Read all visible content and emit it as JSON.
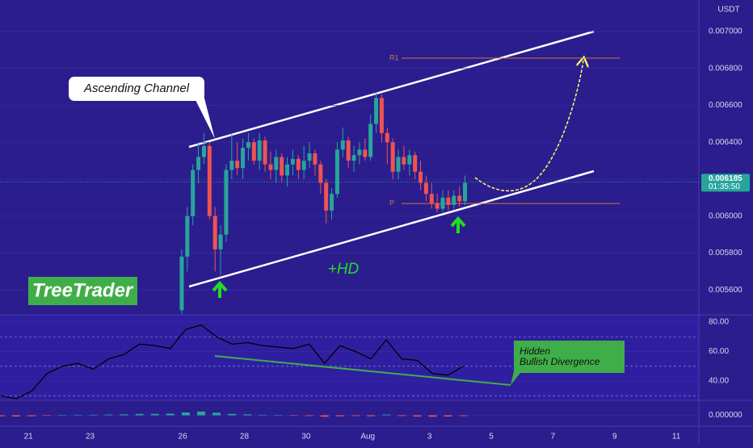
{
  "chart_data": [
    {
      "type": "candlestick",
      "unit": "USDT",
      "brand": "TreeTrader",
      "annotations": {
        "channel": "Ascending Channel",
        "hd": "+HD"
      },
      "levels": [
        {
          "name": "R1",
          "value": 0.006856
        },
        {
          "name": "P",
          "value": 0.006068
        }
      ],
      "last_price": {
        "value": 0.006185,
        "label": "0.006185"
      },
      "countdown": "01:35:50",
      "up_color": "#26a69a",
      "down_color": "#ef5350",
      "x": [
        25.97,
        26.15,
        26.33,
        26.51,
        26.69,
        26.87,
        27.05,
        27.23,
        27.41,
        27.59,
        27.77,
        27.95,
        28.13,
        28.31,
        28.49,
        28.67,
        28.85,
        29.03,
        29.21,
        29.39,
        29.57,
        29.75,
        29.93,
        30.11,
        30.29,
        30.47,
        30.65,
        30.83,
        31.01,
        31.19,
        31.37,
        31.55,
        31.73,
        31.91,
        32.09,
        32.27,
        32.45,
        32.63,
        32.81,
        32.99,
        33.17,
        33.35,
        33.53,
        33.71,
        33.89,
        34.07,
        34.25,
        34.43,
        34.61,
        34.79,
        34.97,
        35.15
      ],
      "open": [
        0.00549,
        0.00578,
        0.006,
        0.00625,
        0.00632,
        0.00638,
        0.006,
        0.00582,
        0.0059,
        0.00625,
        0.0063,
        0.00626,
        0.00637,
        0.0064,
        0.0063,
        0.00641,
        0.00628,
        0.00625,
        0.00632,
        0.00622,
        0.00628,
        0.00631,
        0.00625,
        0.0063,
        0.00634,
        0.00628,
        0.00618,
        0.00603,
        0.00612,
        0.00636,
        0.00641,
        0.0063,
        0.00633,
        0.00636,
        0.00632,
        0.0065,
        0.00664,
        0.00645,
        0.0064,
        0.00624,
        0.00632,
        0.00628,
        0.00633,
        0.00624,
        0.00618,
        0.00612,
        0.00607,
        0.00604,
        0.0061,
        0.00606,
        0.00611,
        0.00608
      ],
      "high": [
        0.00582,
        0.00605,
        0.00628,
        0.0064,
        0.00645,
        0.0064,
        0.00605,
        0.00595,
        0.00628,
        0.00645,
        0.0064,
        0.00642,
        0.00645,
        0.00642,
        0.00645,
        0.00643,
        0.00635,
        0.00636,
        0.00634,
        0.00632,
        0.00636,
        0.00633,
        0.00638,
        0.0064,
        0.00636,
        0.0063,
        0.0062,
        0.00615,
        0.0064,
        0.00648,
        0.00643,
        0.00638,
        0.0064,
        0.00642,
        0.00655,
        0.00667,
        0.00666,
        0.00648,
        0.00642,
        0.00636,
        0.00638,
        0.00636,
        0.00635,
        0.0063,
        0.00622,
        0.00618,
        0.00612,
        0.00614,
        0.00614,
        0.00614,
        0.00616,
        0.00622
      ],
      "low": [
        0.00547,
        0.0057,
        0.00595,
        0.00618,
        0.00628,
        0.00598,
        0.0057,
        0.00568,
        0.00586,
        0.0062,
        0.00622,
        0.0062,
        0.0063,
        0.00628,
        0.00625,
        0.00624,
        0.0062,
        0.00618,
        0.00618,
        0.00616,
        0.00622,
        0.0062,
        0.0062,
        0.00626,
        0.00622,
        0.00612,
        0.00596,
        0.00598,
        0.0061,
        0.00632,
        0.00626,
        0.00624,
        0.00628,
        0.0063,
        0.0063,
        0.00645,
        0.0064,
        0.00628,
        0.0062,
        0.0062,
        0.00625,
        0.00622,
        0.0062,
        0.00614,
        0.00608,
        0.00604,
        0.00602,
        0.00602,
        0.00603,
        0.00604,
        0.00605,
        0.00606
      ],
      "close": [
        0.00578,
        0.006,
        0.00625,
        0.00632,
        0.00638,
        0.006,
        0.00582,
        0.0059,
        0.00625,
        0.0063,
        0.00626,
        0.00637,
        0.0064,
        0.0063,
        0.00641,
        0.00628,
        0.00625,
        0.00632,
        0.00622,
        0.00628,
        0.00631,
        0.00625,
        0.0063,
        0.00634,
        0.00628,
        0.00618,
        0.00603,
        0.00612,
        0.00636,
        0.00641,
        0.0063,
        0.00633,
        0.00636,
        0.00632,
        0.0065,
        0.00664,
        0.00645,
        0.0064,
        0.00624,
        0.00632,
        0.00628,
        0.00633,
        0.00624,
        0.00618,
        0.00612,
        0.00607,
        0.00604,
        0.0061,
        0.00606,
        0.00611,
        0.00608,
        0.00618
      ],
      "xlim": [
        20.08,
        42.73
      ],
      "xticks": [
        21,
        23,
        26,
        28,
        30,
        {
          "value": 32,
          "label": "Aug"
        },
        {
          "value": 34,
          "label": "3"
        },
        {
          "value": 36,
          "label": "5"
        },
        {
          "value": 38,
          "label": "7"
        },
        {
          "value": 40,
          "label": "9"
        },
        {
          "value": 42,
          "label": "11"
        }
      ],
      "ylim": [
        0.005443,
        0.007171
      ],
      "yticks": [
        {
          "value": 0.0056,
          "label": "0.005600"
        },
        {
          "value": 0.0058,
          "label": "0.005800"
        },
        {
          "value": 0.006,
          "label": "0.006000"
        },
        {
          "value": 0.0062,
          "label": "0.006200"
        },
        {
          "value": 0.0064,
          "label": "0.006400"
        },
        {
          "value": 0.0066,
          "label": "0.006600"
        },
        {
          "value": 0.0068,
          "label": "0.006800"
        },
        {
          "value": 0.007,
          "label": "0.007000"
        }
      ]
    },
    {
      "type": "line",
      "color": "#000000",
      "annotation": [
        "Hidden",
        "Bullish Divergence"
      ],
      "x": [
        20.1,
        20.6,
        21.1,
        21.6,
        22.1,
        22.6,
        23.1,
        23.6,
        24.1,
        24.6,
        25.1,
        25.6,
        26.1,
        26.6,
        27.1,
        27.6,
        28.1,
        28.6,
        29.1,
        29.6,
        30.1,
        30.6,
        31.1,
        31.6,
        32.1,
        32.6,
        33.1,
        33.6,
        34.1,
        34.6,
        35.1
      ],
      "values": [
        30,
        28,
        33,
        45,
        50,
        52,
        48,
        55,
        58,
        65,
        64,
        62,
        75,
        78,
        70,
        65,
        66,
        64,
        63,
        62,
        65,
        52,
        64,
        60,
        55,
        68,
        55,
        54,
        45,
        44,
        50
      ],
      "bands": [
        70,
        50,
        30
      ],
      "ylim": [
        27.4,
        84.9
      ],
      "yticks": [
        {
          "value": 40,
          "label": "40.00"
        },
        {
          "value": 60,
          "label": "60.00"
        },
        {
          "value": 80,
          "label": "80.00"
        }
      ]
    },
    {
      "type": "bar",
      "up_color": "#26a69a",
      "down_color": "#ef5350",
      "x": [
        20.1,
        20.6,
        21.1,
        21.6,
        22.1,
        22.6,
        23.1,
        23.6,
        24.1,
        24.6,
        25.1,
        25.6,
        26.1,
        26.6,
        27.1,
        27.6,
        28.1,
        28.6,
        29.1,
        29.6,
        30.1,
        30.6,
        31.1,
        31.6,
        32.1,
        32.6,
        33.1,
        33.6,
        34.1,
        34.6,
        35.1
      ],
      "values": [
        -4e-06,
        -5e-06,
        -4e-06,
        -2e-06,
        1e-06,
        2e-06,
        2e-06,
        3e-06,
        4e-06,
        6e-06,
        6e-06,
        7e-06,
        1.2e-05,
        1.6e-05,
        1.1e-05,
        6e-06,
        4e-06,
        2e-06,
        1e-06,
        -2e-06,
        -3e-06,
        -6e-06,
        -4e-06,
        -3e-06,
        -4e-06,
        3e-06,
        -3e-06,
        -5e-06,
        -6e-06,
        -5e-06,
        -3e-06
      ],
      "ylim": [
        -6e-05,
        6e-05
      ],
      "yticks": [
        {
          "value": 0,
          "label": "0.000000"
        }
      ]
    }
  ]
}
